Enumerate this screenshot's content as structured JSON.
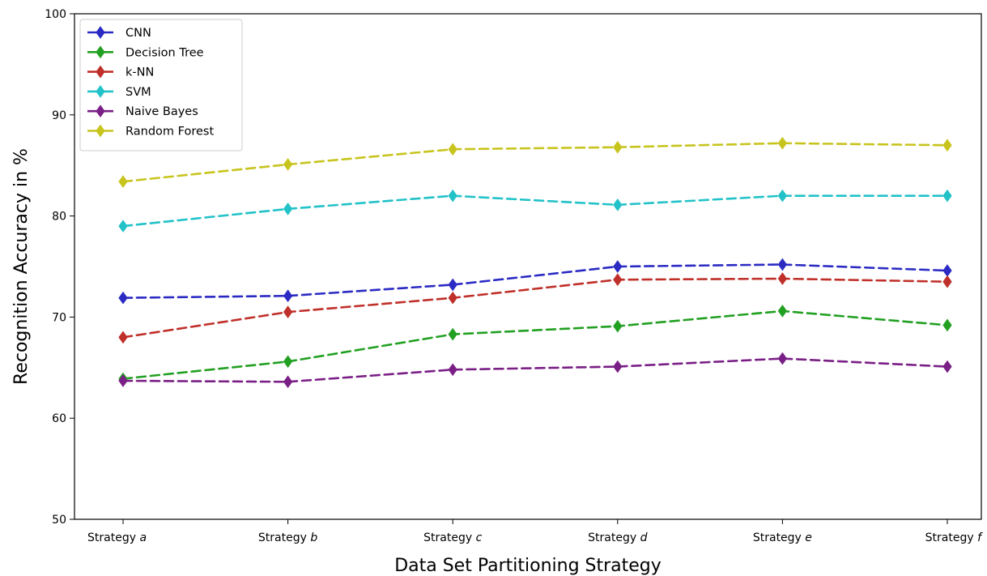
{
  "chart_data": {
    "type": "line",
    "xlabel": "Data Set Partitioning Strategy",
    "ylabel": "Recognition Accuracy in %",
    "categories": [
      {
        "prefix": "Strategy",
        "letter": "a"
      },
      {
        "prefix": "Strategy",
        "letter": "b"
      },
      {
        "prefix": "Strategy",
        "letter": "c"
      },
      {
        "prefix": "Strategy",
        "letter": "d"
      },
      {
        "prefix": "Strategy",
        "letter": "e"
      },
      {
        "prefix": "Strategy",
        "letter": "f"
      }
    ],
    "ylim": [
      50,
      100
    ],
    "yticks": [
      50,
      60,
      70,
      80,
      90,
      100
    ],
    "grid": false,
    "legend_position": "top-left",
    "series": [
      {
        "name": "CNN",
        "color": "#2b2bc4",
        "values": [
          71.9,
          72.1,
          73.2,
          75.0,
          75.2,
          74.6
        ]
      },
      {
        "name": "Decision Tree",
        "color": "#22a022",
        "values": [
          63.9,
          65.6,
          68.3,
          69.1,
          70.6,
          69.2
        ]
      },
      {
        "name": "k-NN",
        "color": "#c0302a",
        "values": [
          68.0,
          70.5,
          71.9,
          73.7,
          73.8,
          73.5
        ]
      },
      {
        "name": "SVM",
        "color": "#22c2c8",
        "values": [
          79.0,
          80.7,
          82.0,
          81.1,
          82.0,
          82.0
        ]
      },
      {
        "name": "Naive Bayes",
        "color": "#7a1f86",
        "values": [
          63.7,
          63.6,
          64.8,
          65.1,
          65.9,
          65.1
        ]
      },
      {
        "name": "Random Forest",
        "color": "#c8c41e",
        "values": [
          83.4,
          85.1,
          86.6,
          86.8,
          87.2,
          87.0
        ]
      }
    ]
  }
}
